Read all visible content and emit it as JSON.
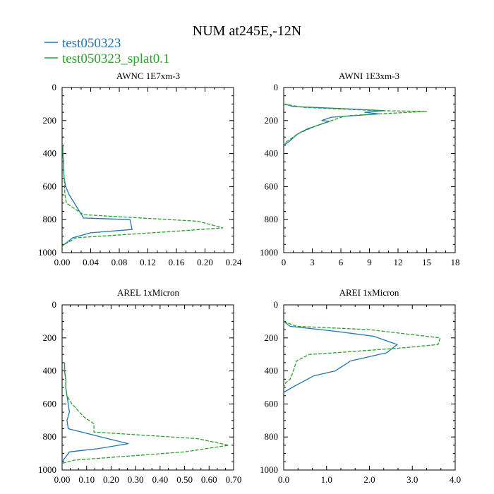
{
  "chart_data": {
    "type": "line",
    "title": "NUM at245E,-12N",
    "legend": [
      {
        "name": "test050323",
        "color": "#1f77b4",
        "dash": "solid"
      },
      {
        "name": "test050323_splat0.1",
        "color": "#2ca02c",
        "dash": "dashed"
      }
    ],
    "panels": [
      {
        "title": "AWNC  1E7xm-3",
        "xlim": [
          0,
          0.24
        ],
        "ylim": [
          1000,
          0
        ],
        "xticks": [
          0,
          0.04,
          0.08,
          0.12,
          0.16,
          0.2,
          0.24
        ],
        "xtick_labels": [
          "0.00",
          "0.04",
          "0.08",
          "0.12",
          "0.16",
          "0.20",
          "0.24"
        ],
        "yticks": [
          0,
          200,
          400,
          600,
          800,
          1000
        ],
        "ytick_labels": [
          "0",
          "200",
          "400",
          "600",
          "800",
          "1000"
        ],
        "series": [
          {
            "name": "test050323",
            "x": [
              0.001,
              0.001,
              0.002,
              0.002,
              0.003,
              0.005,
              0.01,
              0.03,
              0.095,
              0.098,
              0.04,
              0.015,
              0.003,
              0.0
            ],
            "y": [
              350,
              400,
              450,
              500,
              550,
              600,
              650,
              790,
              800,
              860,
              880,
              910,
              950,
              960
            ]
          },
          {
            "name": "test050323_splat0.1",
            "x": [
              0.001,
              0.001,
              0.002,
              0.002,
              0.003,
              0.004,
              0.006,
              0.03,
              0.19,
              0.225,
              0.16,
              0.02,
              0.003,
              0.0
            ],
            "y": [
              350,
              400,
              450,
              500,
              550,
              650,
              700,
              770,
              810,
              850,
              870,
              910,
              950,
              960
            ]
          }
        ]
      },
      {
        "title": "AWNI  1E3xm-3",
        "xlim": [
          0,
          18
        ],
        "ylim": [
          1000,
          0
        ],
        "xticks": [
          0,
          3,
          6,
          9,
          12,
          15,
          18
        ],
        "xtick_labels": [
          "0",
          "3",
          "6",
          "9",
          "12",
          "15",
          "18"
        ],
        "yticks": [
          0,
          200,
          400,
          600,
          800,
          1000
        ],
        "ytick_labels": [
          "0",
          "200",
          "400",
          "600",
          "800",
          "1000"
        ],
        "series": [
          {
            "name": "test050323",
            "x": [
              0.0,
              1.0,
              7.0,
              10.6,
              8.5,
              10.0,
              5.0,
              4.0,
              4.8,
              2.5,
              1.5,
              0.5,
              0.0
            ],
            "y": [
              100,
              115,
              130,
              140,
              150,
              160,
              180,
              200,
              205,
              250,
              280,
              330,
              350
            ]
          },
          {
            "name": "test050323_splat0.1",
            "x": [
              0.0,
              2.0,
              10.0,
              15.0,
              10.0,
              7.0,
              6.3,
              3.5,
              1.5,
              0.5,
              0.0
            ],
            "y": [
              100,
              120,
              140,
              145,
              160,
              170,
              175,
              230,
              280,
              320,
              340
            ]
          }
        ]
      },
      {
        "title": "AREL  1xMicron",
        "xlim": [
          0,
          0.7
        ],
        "ylim": [
          1000,
          0
        ],
        "xticks": [
          0,
          0.1,
          0.2,
          0.3,
          0.4,
          0.5,
          0.6,
          0.7
        ],
        "xtick_labels": [
          "0.00",
          "0.10",
          "0.20",
          "0.30",
          "0.40",
          "0.50",
          "0.60",
          "0.70"
        ],
        "yticks": [
          0,
          200,
          400,
          600,
          800,
          1000
        ],
        "ytick_labels": [
          "0",
          "200",
          "400",
          "600",
          "800",
          "1000"
        ],
        "series": [
          {
            "name": "test050323",
            "x": [
              0.01,
              0.01,
              0.015,
              0.015,
              0.02,
              0.03,
              0.02,
              0.025,
              0.16,
              0.27,
              0.15,
              0.03,
              0.005,
              0.0
            ],
            "y": [
              350,
              400,
              450,
              500,
              550,
              650,
              700,
              750,
              800,
              840,
              870,
              890,
              940,
              960
            ]
          },
          {
            "name": "test050323_splat0.1",
            "x": [
              0.01,
              0.01,
              0.015,
              0.015,
              0.02,
              0.04,
              0.09,
              0.13,
              0.13,
              0.55,
              0.68,
              0.5,
              0.05,
              0.0
            ],
            "y": [
              350,
              400,
              450,
              500,
              550,
              600,
              680,
              720,
              770,
              810,
              850,
              890,
              940,
              960
            ]
          }
        ]
      },
      {
        "title": "AREI  1xMicron",
        "xlim": [
          0,
          4.0
        ],
        "ylim": [
          1000,
          0
        ],
        "xticks": [
          0,
          1,
          2,
          3,
          4
        ],
        "xtick_labels": [
          "0.0",
          "1.0",
          "2.0",
          "3.0",
          "4.0"
        ],
        "yticks": [
          0,
          200,
          400,
          600,
          800,
          1000
        ],
        "ytick_labels": [
          "0",
          "200",
          "400",
          "600",
          "800",
          "1000"
        ],
        "series": [
          {
            "name": "test050323",
            "x": [
              0.0,
              0.15,
              1.2,
              2.1,
              2.65,
              2.4,
              1.55,
              1.5,
              1.2,
              0.7,
              0.2,
              0.0
            ],
            "y": [
              100,
              130,
              160,
              190,
              240,
              290,
              340,
              350,
              400,
              430,
              500,
              530
            ]
          },
          {
            "name": "test050323_splat0.1",
            "x": [
              0.0,
              0.3,
              2.0,
              3.65,
              3.6,
              2.8,
              1.2,
              0.6,
              0.3,
              0.2,
              0.15,
              0.05,
              0.0
            ],
            "y": [
              100,
              130,
              150,
              200,
              240,
              260,
              290,
              300,
              340,
              420,
              450,
              470,
              500
            ]
          }
        ]
      }
    ]
  }
}
